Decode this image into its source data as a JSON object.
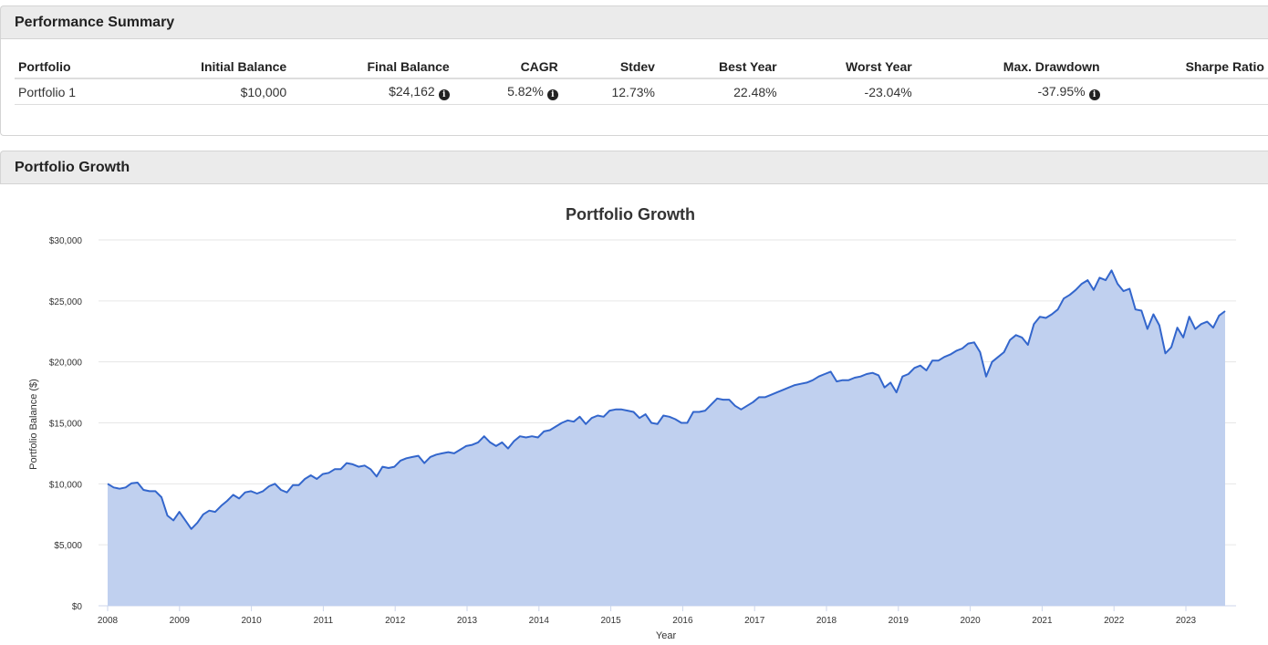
{
  "performance_summary": {
    "heading": "Performance Summary",
    "columns": [
      "Portfolio",
      "Initial Balance",
      "Final Balance",
      "CAGR",
      "Stdev",
      "Best Year",
      "Worst Year",
      "Max. Drawdown",
      "Sharpe Ratio"
    ],
    "rows": [
      {
        "portfolio": "Portfolio 1",
        "initial_balance": "$10,000",
        "final_balance": "$24,162",
        "cagr": "5.82%",
        "stdev": "12.73%",
        "best_year": "22.48%",
        "worst_year": "-23.04%",
        "max_drawdown": "-37.95%",
        "sharpe": ""
      }
    ],
    "info_icon": "info-circle-icon"
  },
  "portfolio_growth": {
    "heading": "Portfolio Growth"
  },
  "chart_data": {
    "type": "area",
    "title": "Portfolio Growth",
    "xlabel": "Year",
    "ylabel": "Portfolio Balance ($)",
    "ylim": [
      0,
      30000
    ],
    "yticks": [
      0,
      5000,
      10000,
      15000,
      20000,
      25000,
      30000
    ],
    "ytick_labels": [
      "$0",
      "$5,000",
      "$10,000",
      "$15,000",
      "$20,000",
      "$25,000",
      "$30,000"
    ],
    "xticks": [
      2008,
      2009,
      2010,
      2011,
      2012,
      2013,
      2014,
      2015,
      2016,
      2017,
      2018,
      2019,
      2020,
      2021,
      2022,
      2023
    ],
    "grid": true,
    "line_color": "#3366cc",
    "fill_color": "#c0d0ef",
    "series": [
      {
        "start_year": 2008,
        "frequency": "monthly",
        "values": [
          10000,
          9700,
          9600,
          9700,
          10050,
          10100,
          9500,
          9400,
          9400,
          8900,
          7400,
          7000,
          7700,
          7000,
          6300,
          6800,
          7500,
          7800,
          7700,
          8200,
          8600,
          9100,
          8800,
          9300,
          9400,
          9200,
          9400,
          9800,
          10000,
          9500,
          9300,
          9900,
          9900,
          10400,
          10700,
          10400,
          10800,
          10900,
          11200,
          11200,
          11700,
          11600,
          11400,
          11500,
          11200,
          10600,
          11400,
          11300,
          11400,
          11900,
          12100,
          12200,
          12300,
          11700,
          12200,
          12400,
          12500,
          12600,
          12500,
          12800,
          13100,
          13200,
          13400,
          13900,
          13400,
          13100,
          13400,
          12900,
          13500,
          13900,
          13800,
          13900,
          13800,
          14300,
          14400,
          14700,
          15000,
          15200,
          15100,
          15500,
          14900,
          15400,
          15600,
          15500,
          16000,
          16100,
          16100,
          16000,
          15900,
          15400,
          15700,
          15000,
          14900,
          15600,
          15500,
          15300,
          15000,
          15000,
          15900,
          15900,
          16000,
          16500,
          17000,
          16900,
          16900,
          16400,
          16100,
          16400,
          16700,
          17100,
          17100,
          17300,
          17500,
          17700,
          17900,
          18100,
          18200,
          18300,
          18500,
          18800,
          19000,
          19200,
          18400,
          18500,
          18500,
          18700,
          18800,
          19000,
          19100,
          18900,
          17900,
          18300,
          17500,
          18800,
          19000,
          19500,
          19700,
          19300,
          20100,
          20100,
          20400,
          20600,
          20900,
          21100,
          21500,
          21600,
          20800,
          18800,
          20000,
          20400,
          20800,
          21800,
          22200,
          22000,
          21400,
          23100,
          23700,
          23600,
          23900,
          24300,
          25200,
          25500,
          25900,
          26400,
          26700,
          25900,
          26900,
          26700,
          27500,
          26400,
          25800,
          26000,
          24300,
          24200,
          22700,
          23900,
          23000,
          20700,
          21200,
          22800,
          22000,
          23700,
          22700,
          23100,
          23300,
          22800,
          23800,
          24162
        ]
      }
    ]
  }
}
